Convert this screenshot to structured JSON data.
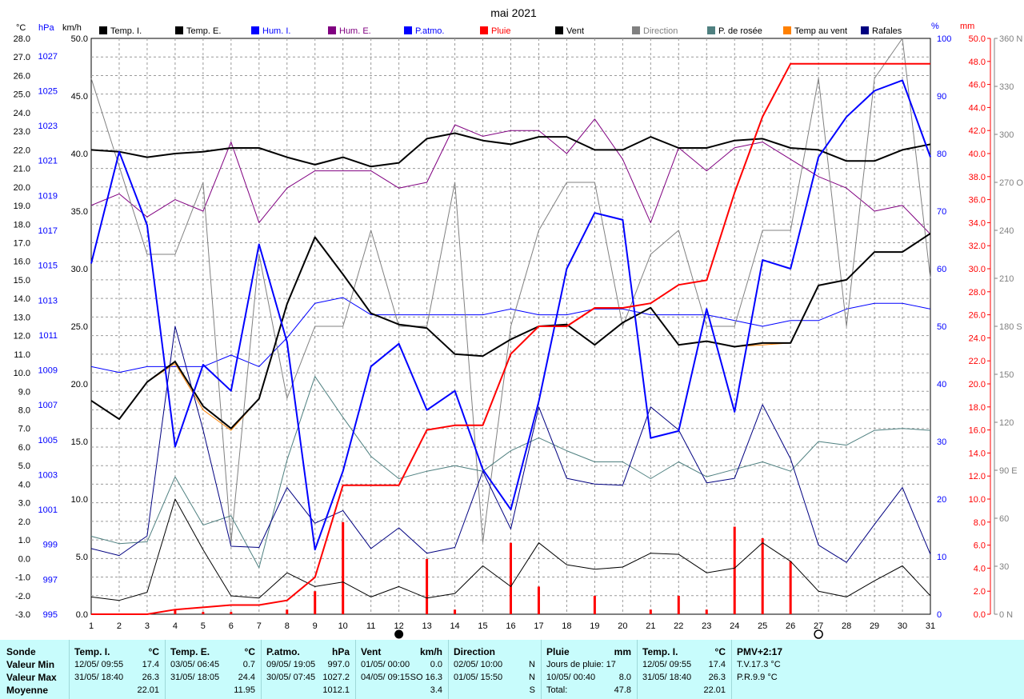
{
  "title": "mai 2021",
  "legend": [
    {
      "label": "Temp. I.",
      "color": "#000000",
      "text_color": "#000000"
    },
    {
      "label": "Temp. E.",
      "color": "#000000",
      "text_color": "#000000"
    },
    {
      "label": "Hum. I.",
      "color": "#0000ff",
      "text_color": "#0000ff"
    },
    {
      "label": "Hum. E.",
      "color": "#800080",
      "text_color": "#800080"
    },
    {
      "label": "P.atmo.",
      "color": "#0000ff",
      "text_color": "#0000ff"
    },
    {
      "label": "Pluie",
      "color": "#ff0000",
      "text_color": "#ff0000"
    },
    {
      "label": "Vent",
      "color": "#000000",
      "text_color": "#000000"
    },
    {
      "label": "Direction",
      "color": "#808080",
      "text_color": "#808080"
    },
    {
      "label": "P. de rosée",
      "color": "#4f8080",
      "text_color": "#000000"
    },
    {
      "label": "Temp au vent",
      "color": "#ff8000",
      "text_color": "#000000"
    },
    {
      "label": "Rafales",
      "color": "#000080",
      "text_color": "#000000"
    }
  ],
  "axis_units": {
    "temp": "°C",
    "pressure": "hPa",
    "wind": "km/h",
    "humidity": "%",
    "rain": "mm"
  },
  "colors": {
    "temp": "#000000",
    "pressure": "#0000ff",
    "wind": "#000000",
    "humidity": "#0000ff",
    "rain": "#ff0000",
    "direction": "#808080",
    "grid": "#999999"
  },
  "moon_markers": [
    {
      "day": 12,
      "phase": "new"
    },
    {
      "day": 27,
      "phase": "full"
    }
  ],
  "chart_data": {
    "type": "line",
    "title": "mai 2021",
    "x": [
      1,
      2,
      3,
      4,
      5,
      6,
      7,
      8,
      9,
      10,
      11,
      12,
      13,
      14,
      15,
      16,
      17,
      18,
      19,
      20,
      21,
      22,
      23,
      24,
      25,
      26,
      27,
      28,
      29,
      30,
      31
    ],
    "axes": {
      "temp": {
        "label": "°C",
        "min": -3,
        "max": 28,
        "ticks": [
          -3,
          -2,
          -1,
          0,
          1,
          2,
          3,
          4,
          5,
          6,
          7,
          8,
          9,
          10,
          11,
          12,
          13,
          14,
          15,
          16,
          17,
          18,
          19,
          20,
          21,
          22,
          23,
          24,
          25,
          26,
          27,
          28
        ]
      },
      "pressure": {
        "label": "hPa",
        "min": 995,
        "max": 1028,
        "ticks": [
          995,
          997,
          999,
          1001,
          1003,
          1005,
          1007,
          1009,
          1011,
          1013,
          1015,
          1017,
          1019,
          1021,
          1023,
          1025,
          1027
        ]
      },
      "wind": {
        "label": "km/h",
        "min": 0,
        "max": 50,
        "ticks": [
          0,
          5,
          10,
          15,
          20,
          25,
          30,
          35,
          40,
          45,
          50
        ]
      },
      "humidity": {
        "label": "%",
        "min": 0,
        "max": 100,
        "ticks": [
          0,
          10,
          20,
          30,
          40,
          50,
          60,
          70,
          80,
          90,
          100
        ]
      },
      "rain": {
        "label": "mm",
        "min": 0,
        "max": 50,
        "ticks": [
          0,
          2,
          4,
          6,
          8,
          10,
          12,
          14,
          16,
          18,
          20,
          22,
          24,
          26,
          28,
          30,
          32,
          34,
          36,
          38,
          40,
          42,
          44,
          46,
          48,
          50
        ]
      },
      "direction": {
        "min": 0,
        "max": 360,
        "ticks": [
          {
            "v": 0,
            "t": "0  N"
          },
          {
            "v": 30,
            "t": "30"
          },
          {
            "v": 60,
            "t": "60"
          },
          {
            "v": 90,
            "t": "90  E"
          },
          {
            "v": 120,
            "t": "120"
          },
          {
            "v": 150,
            "t": "150"
          },
          {
            "v": 180,
            "t": "180  S"
          },
          {
            "v": 210,
            "t": "210"
          },
          {
            "v": 240,
            "t": "240"
          },
          {
            "v": 270,
            "t": "270  O"
          },
          {
            "v": 300,
            "t": "300"
          },
          {
            "v": 330,
            "t": "330"
          },
          {
            "v": 360,
            "t": "360  N"
          }
        ]
      }
    },
    "series": [
      {
        "name": "Temp. I.",
        "axis": "temp",
        "color": "#000000",
        "width": 2,
        "values": [
          22.0,
          21.9,
          21.6,
          21.8,
          21.9,
          22.1,
          22.1,
          21.6,
          21.2,
          21.6,
          21.1,
          21.3,
          22.6,
          22.9,
          22.5,
          22.3,
          22.7,
          22.7,
          22.0,
          22.0,
          22.7,
          22.1,
          22.1,
          22.5,
          22.6,
          22.1,
          22.0,
          21.4,
          21.4,
          22.0,
          22.3
        ]
      },
      {
        "name": "Temp. E.",
        "axis": "temp",
        "color": "#000000",
        "width": 2,
        "values": [
          8.5,
          7.5,
          9.5,
          10.6,
          8.2,
          7.0,
          8.6,
          13.7,
          17.3,
          15.3,
          13.2,
          12.6,
          12.4,
          11.0,
          10.9,
          11.8,
          12.5,
          12.6,
          11.5,
          12.7,
          13.5,
          11.5,
          11.7,
          11.4,
          11.6,
          11.6,
          14.7,
          15.0,
          16.5,
          16.5,
          17.5
        ]
      },
      {
        "name": "Hum. I.",
        "axis": "humidity",
        "color": "#0000ff",
        "width": 1,
        "values": [
          43,
          42,
          43,
          43,
          43,
          45,
          43,
          48,
          54,
          55,
          52,
          52,
          52,
          52,
          52,
          53,
          52,
          52,
          53,
          53,
          52,
          52,
          52,
          51,
          50,
          51,
          51,
          53,
          54,
          54,
          53
        ]
      },
      {
        "name": "Hum. E.",
        "axis": "humidity",
        "color": "#800080",
        "width": 1,
        "values": [
          71,
          73,
          69,
          72,
          70,
          82,
          68,
          74,
          77,
          77,
          77,
          74,
          75,
          85,
          83,
          84,
          84,
          80,
          86,
          79,
          68,
          81,
          77,
          81,
          82,
          79,
          76,
          74,
          70,
          71,
          66
        ]
      },
      {
        "name": "P.atmo.",
        "axis": "pressure",
        "color": "#0000ff",
        "width": 2,
        "values": [
          1015.1,
          1021.5,
          1017.3,
          1004.6,
          1009.3,
          1007.8,
          1016.2,
          1010.6,
          998.7,
          1003.2,
          1009.2,
          1010.5,
          1006.7,
          1007.8,
          1003.3,
          1001.0,
          1007.2,
          1014.8,
          1018.0,
          1017.6,
          1005.1,
          1005.5,
          1012.5,
          1006.6,
          1015.3,
          1014.8,
          1021.2,
          1023.5,
          1025.0,
          1025.6,
          1021.2
        ]
      },
      {
        "name": "Pluie",
        "axis": "rain",
        "color": "#ff0000",
        "width": 2,
        "values": [
          0,
          0,
          0,
          0.4,
          0.6,
          0.8,
          0.8,
          1.2,
          3.2,
          11.2,
          11.2,
          11.2,
          16.0,
          16.4,
          16.4,
          22.6,
          25.0,
          25.0,
          26.6,
          26.6,
          27.0,
          28.6,
          29.0,
          36.6,
          43.2,
          47.8,
          47.8,
          47.8,
          47.8,
          47.8,
          47.8
        ]
      },
      {
        "name": "Vent",
        "axis": "wind",
        "color": "#000000",
        "width": 1,
        "values": [
          1.5,
          1.2,
          1.9,
          10.0,
          5.6,
          1.6,
          1.4,
          3.6,
          2.4,
          2.8,
          1.5,
          2.4,
          1.4,
          1.8,
          4.2,
          2.4,
          6.2,
          4.3,
          3.9,
          4.1,
          5.3,
          5.2,
          3.6,
          4.0,
          6.2,
          4.6,
          2.0,
          1.5,
          2.9,
          4.2,
          1.6
        ]
      },
      {
        "name": "Direction",
        "axis": "direction",
        "color": "#808080",
        "width": 1,
        "values": [
          335,
          280,
          225,
          225,
          270,
          45,
          225,
          135,
          180,
          180,
          240,
          180,
          180,
          270,
          45,
          180,
          240,
          270,
          270,
          180,
          225,
          240,
          180,
          180,
          240,
          240,
          335,
          180,
          335,
          360,
          210
        ]
      },
      {
        "name": "P. de rosée",
        "axis": "temp",
        "color": "#4f8080",
        "width": 1,
        "values": [
          1.2,
          0.8,
          0.9,
          4.4,
          1.8,
          2.3,
          -0.5,
          5.3,
          9.8,
          7.6,
          5.5,
          4.3,
          4.7,
          5.0,
          4.7,
          5.8,
          6.5,
          5.8,
          5.2,
          5.2,
          4.3,
          5.2,
          4.4,
          4.8,
          5.2,
          4.7,
          6.3,
          6.1,
          6.9,
          7.0,
          6.9
        ]
      },
      {
        "name": "Temp au vent",
        "axis": "temp",
        "color": "#ff8000",
        "width": 1,
        "values": [
          8.5,
          7.5,
          9.5,
          10.5,
          8.0,
          6.9,
          8.6,
          13.7,
          17.3,
          15.3,
          13.2,
          12.6,
          12.4,
          11.0,
          10.9,
          11.8,
          12.5,
          12.6,
          11.5,
          12.7,
          13.5,
          11.5,
          11.7,
          11.4,
          11.5,
          11.6,
          14.7,
          15.0,
          16.5,
          16.5,
          17.5
        ]
      },
      {
        "name": "Rafales",
        "axis": "wind",
        "color": "#000080",
        "width": 1,
        "values": [
          5.7,
          5.1,
          6.8,
          25.0,
          16.0,
          5.9,
          5.8,
          11.0,
          7.9,
          9.0,
          5.7,
          7.5,
          5.3,
          5.8,
          12.4,
          7.4,
          18.0,
          11.8,
          11.3,
          11.2,
          18.0,
          16.0,
          11.4,
          11.8,
          18.2,
          13.5,
          6.0,
          4.5,
          7.8,
          11.0,
          5.2
        ]
      }
    ],
    "daily_rain": [
      0,
      0,
      0,
      0.4,
      0.2,
      0.2,
      0,
      0.4,
      2.0,
      8.0,
      0,
      0,
      4.8,
      0.4,
      0,
      6.2,
      2.4,
      0,
      1.6,
      0,
      0.4,
      1.6,
      0.4,
      7.6,
      6.6,
      4.6,
      0,
      0,
      0,
      0,
      0
    ]
  },
  "stats": {
    "row_labels": [
      "Sonde",
      "Valeur Min",
      "Valeur Max",
      "Moyenne"
    ],
    "columns": [
      {
        "title": "Temp. I.",
        "unit": "°C",
        "rows": [
          [
            "12/05/  09:55",
            "17.4"
          ],
          [
            "31/05/  18:40",
            "26.3"
          ],
          [
            "",
            "22.01"
          ]
        ]
      },
      {
        "title": "Temp. E.",
        "unit": "°C",
        "rows": [
          [
            "03/05/  06:45",
            "0.7"
          ],
          [
            "31/05/  18:05",
            "24.4"
          ],
          [
            "",
            "11.95"
          ]
        ]
      },
      {
        "title": "P.atmo.",
        "unit": "hPa",
        "rows": [
          [
            "09/05/  19:05",
            "997.0"
          ],
          [
            "30/05/  07:45",
            "1027.2"
          ],
          [
            "",
            "1012.1"
          ]
        ]
      },
      {
        "title": "Vent",
        "unit": "km/h",
        "rows": [
          [
            "01/05/  00:00",
            "0.0"
          ],
          [
            "04/05/  09:15",
            "SO 16.3"
          ],
          [
            "",
            "3.4"
          ]
        ]
      },
      {
        "title": "Direction",
        "unit": "",
        "rows": [
          [
            "02/05/  10:00",
            "N"
          ],
          [
            "01/05/  15:50",
            "N"
          ],
          [
            "",
            "S"
          ]
        ]
      },
      {
        "title": "Pluie",
        "unit": "mm",
        "rows": [
          [
            "Jours de pluie: 17",
            ""
          ],
          [
            "10/05/  00:40",
            "8.0"
          ],
          [
            "Total:",
            "47.8"
          ]
        ]
      },
      {
        "title": "Temp. I.",
        "unit": "°C",
        "rows": [
          [
            "12/05/  09:55",
            "17.4"
          ],
          [
            "31/05/  18:40",
            "26.3"
          ],
          [
            "",
            "22.01"
          ]
        ]
      },
      {
        "title": "PMV+2:17",
        "unit": "",
        "rows": [
          [
            "T.V.17.3 °C",
            ""
          ],
          [
            "P.R.9.9 °C",
            ""
          ],
          [
            "",
            ""
          ]
        ]
      }
    ]
  }
}
